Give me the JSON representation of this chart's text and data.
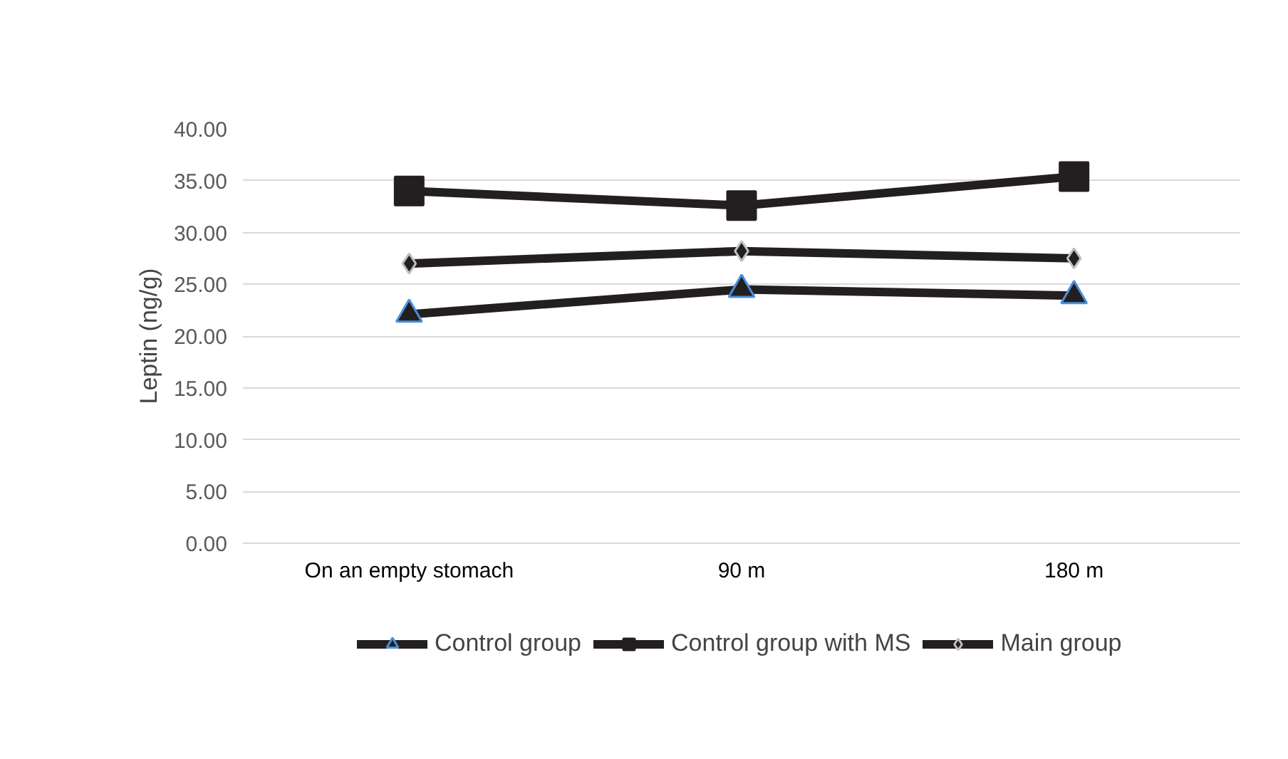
{
  "chart_data": {
    "type": "line",
    "ylabel": "Leptin (ng/g)",
    "categories": [
      "On an empty stomach",
      "90 m",
      "180 m"
    ],
    "series": [
      {
        "name": "Control group",
        "color": "#231f20",
        "marker": "triangle",
        "values": [
          22.1,
          24.5,
          23.9
        ]
      },
      {
        "name": "Control group with MS",
        "color": "#231f20",
        "marker": "square",
        "values": [
          34.0,
          32.6,
          35.4
        ]
      },
      {
        "name": "Main group",
        "color": "#231f20",
        "marker": "diamond",
        "values": [
          27.0,
          28.2,
          27.5
        ]
      }
    ],
    "ylim": [
      0,
      40
    ],
    "yticks": [
      {
        "value": 0,
        "label": "0.00"
      },
      {
        "value": 5,
        "label": "5.00"
      },
      {
        "value": 10,
        "label": "10.00"
      },
      {
        "value": 15,
        "label": "15.00"
      },
      {
        "value": 20,
        "label": "20.00"
      },
      {
        "value": 25,
        "label": "25.00"
      },
      {
        "value": 30,
        "label": "30.00"
      },
      {
        "value": 35,
        "label": "35.00"
      },
      {
        "value": 40,
        "label": "40.00"
      }
    ],
    "grid": "y",
    "legend": "bottom",
    "line_style": "solid"
  }
}
